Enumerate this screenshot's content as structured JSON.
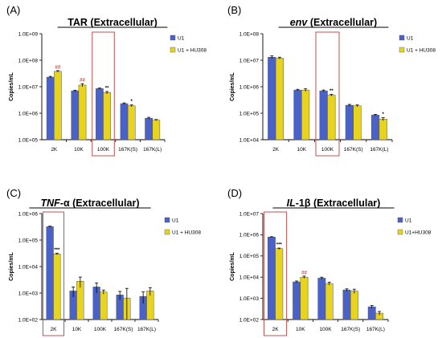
{
  "colors": {
    "u1": "#4a62c8",
    "hu": "#e8d41e",
    "highlight": "#c0504d",
    "sig_red": "#c0504d",
    "sig_black": "#000000"
  },
  "chart_data": [
    {
      "type": "bar",
      "panel_label": "(A)",
      "title": "TAR (Extracellular)",
      "title_italic": "",
      "title_rest": "",
      "ylabel": "Copies/mL",
      "yscale": "log",
      "ylim": [
        100000,
        1000000000
      ],
      "yticks": [
        "1.0E+05",
        "1.0E+06",
        "1.0E+07",
        "1.0E+08",
        "1.0E+09"
      ],
      "categories": [
        "2K",
        "10K",
        "100K",
        "167K(S)",
        "167K(L)"
      ],
      "series": [
        {
          "name": "U1",
          "values": [
            23000000,
            7000000,
            8500000,
            2300000,
            650000
          ],
          "errors": [
            1500000,
            400000,
            400000,
            150000,
            50000
          ]
        },
        {
          "name": "U1 + HU308",
          "values": [
            38000000,
            11500000,
            6000000,
            1900000,
            550000
          ],
          "errors": [
            2500000,
            1500000,
            600000,
            150000,
            30000
          ]
        }
      ],
      "significance": [
        {
          "category": "2K",
          "text": "##",
          "color": "red"
        },
        {
          "category": "10K",
          "text": "##",
          "color": "red"
        },
        {
          "category": "100K",
          "text": "**",
          "color": "black"
        },
        {
          "category": "167K(S)",
          "text": "*",
          "color": "black"
        }
      ],
      "highlight": "100K",
      "legend_position": "top-right"
    },
    {
      "type": "bar",
      "panel_label": "(B)",
      "title": "",
      "title_italic": "env",
      "title_rest": " (Extracellular)",
      "ylabel": "Copies/mL",
      "yscale": "log",
      "ylim": [
        10000,
        100000000
      ],
      "yticks": [
        "1.0E+04",
        "1.0E+05",
        "1.0E+06",
        "1.0E+07",
        "1.0E+08"
      ],
      "categories": [
        "2K",
        "10K",
        "100K",
        "167K(S)",
        "167K(L)"
      ],
      "series": [
        {
          "name": "U1",
          "values": [
            13000000,
            750000,
            700000,
            200000,
            85000
          ],
          "errors": [
            1500000,
            50000,
            50000,
            15000,
            5000
          ]
        },
        {
          "name": "U1 + HU308",
          "values": [
            12000000,
            750000,
            480000,
            190000,
            60000
          ],
          "errors": [
            1000000,
            80000,
            40000,
            15000,
            8000
          ]
        }
      ],
      "significance": [
        {
          "category": "100K",
          "text": "**",
          "color": "black"
        },
        {
          "category": "167K(L)",
          "text": "*",
          "color": "black"
        }
      ],
      "highlight": "100K",
      "legend_position": "top-right"
    },
    {
      "type": "bar",
      "panel_label": "(C)",
      "title": "",
      "title_italic": "TNF",
      "title_rest": "-α (Extracellular)",
      "ylabel": "Copies/mL",
      "yscale": "log",
      "ylim": [
        100,
        1000000
      ],
      "yticks": [
        "1.0E+02",
        "1.0E+03",
        "1.0E+04",
        "1.0E+05",
        "1.0E+06"
      ],
      "categories": [
        "2K",
        "10K",
        "100K",
        "167K(S)",
        "167K(L)"
      ],
      "series": [
        {
          "name": "U1",
          "values": [
            320000,
            1200,
            1700,
            850,
            750
          ],
          "errors": [
            15000,
            500,
            700,
            300,
            350
          ]
        },
        {
          "name": "U1 + HU308",
          "values": [
            30000,
            2800,
            1100,
            650,
            1200
          ],
          "errors": [
            2000,
            1200,
            200,
            850,
            400
          ]
        }
      ],
      "significance": [
        {
          "category": "2K",
          "text": "***",
          "color": "black"
        }
      ],
      "highlight": "2K",
      "legend_position": "top-right"
    },
    {
      "type": "bar",
      "panel_label": "(D)",
      "title": "",
      "title_italic": "IL",
      "title_rest": "-1β (Extracellular)",
      "ylabel": "Copies/mL",
      "yscale": "log",
      "ylim": [
        100,
        10000000
      ],
      "yticks": [
        "1.0E+02",
        "1.0E+03",
        "1.0E+04",
        "1.0E+05",
        "1.0E+06",
        "1.0E+07"
      ],
      "categories": [
        "2K",
        "10K",
        "100K",
        "167K(S)",
        "167K(L)"
      ],
      "series": [
        {
          "name": "U1",
          "values": [
            780000,
            6000,
            9000,
            2500,
            400
          ],
          "errors": [
            30000,
            600,
            1000,
            300,
            60
          ]
        },
        {
          "name": "U1+HU308",
          "values": [
            220000,
            10000,
            5000,
            2200,
            200
          ],
          "errors": [
            15000,
            1200,
            800,
            500,
            40
          ]
        }
      ],
      "significance": [
        {
          "category": "2K",
          "text": "***",
          "color": "black"
        },
        {
          "category": "10K",
          "text": "##",
          "color": "red"
        }
      ],
      "highlight": "2K",
      "legend_position": "top-right"
    }
  ]
}
